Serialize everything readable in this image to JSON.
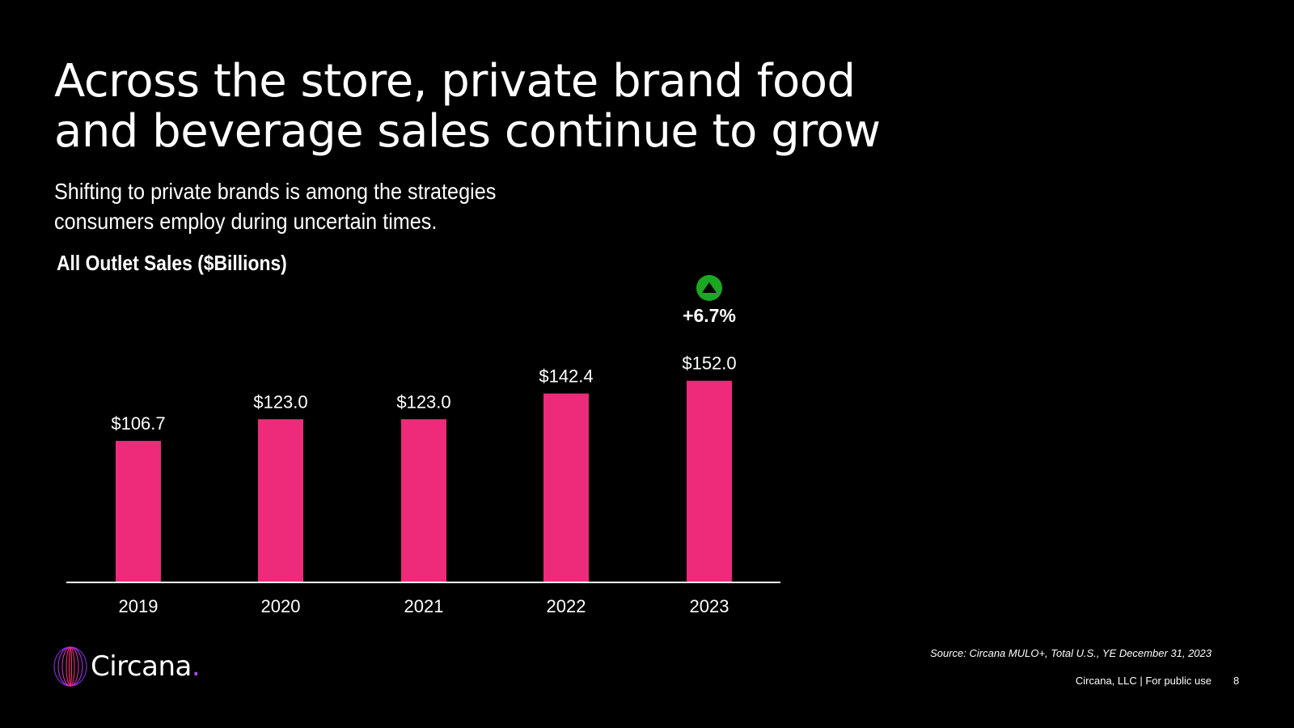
{
  "slide": {
    "title_lines": [
      "Across the store, private brand food",
      "and beverage sales continue to grow"
    ],
    "subtitle_lines": [
      "Shifting to private brands is among the strategies",
      "consumers employ during uncertain times."
    ],
    "source": "Source: Circana MULO+, Total U.S., YE December 31, 2023",
    "footer": "Circana, LLC |  For public use",
    "page_number": "8",
    "logo_text": "Circana",
    "logo_dot": "."
  },
  "colors": {
    "background": "#000000",
    "bar": "#ee2a7b",
    "up_badge": "#1aa822",
    "text": "#ffffff"
  },
  "chart_data": {
    "type": "bar",
    "title": "All Outlet Sales ($Billions)",
    "categories": [
      "2019",
      "2020",
      "2021",
      "2022",
      "2023"
    ],
    "values": [
      106.7,
      123.0,
      123.0,
      142.4,
      152.0
    ],
    "value_labels": [
      "$106.7",
      "$123.0",
      "$123.0",
      "$142.4",
      "$152.0"
    ],
    "change_label": "+6.7%",
    "change_direction": "up",
    "change_category": "2023",
    "xlabel": "",
    "ylabel": "",
    "ylim": [
      0,
      160
    ],
    "grid": false
  }
}
